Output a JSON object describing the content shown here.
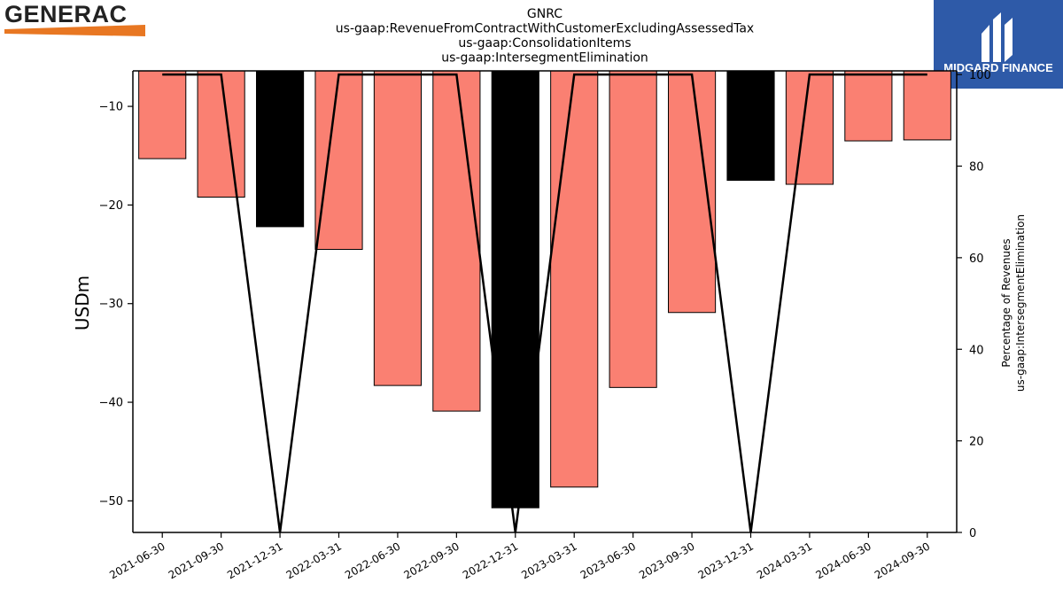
{
  "logos": {
    "left": {
      "text": "GENERAC",
      "accent": "#e87722"
    },
    "right": {
      "text": "MIDGARD FINANCE",
      "background": "#2e5aa8"
    }
  },
  "chart_data": {
    "type": "bar",
    "title_lines": [
      "GNRC",
      "us-gaap:RevenueFromContractWithCustomerExcludingAssessedTax",
      "us-gaap:ConsolidationItems",
      "us-gaap:IntersegmentElimination"
    ],
    "categories": [
      "2021-06-30",
      "2021-09-30",
      "2021-12-31",
      "2022-03-31",
      "2022-06-30",
      "2022-09-30",
      "2022-12-31",
      "2023-03-31",
      "2023-06-30",
      "2023-09-30",
      "2023-12-31",
      "2024-03-31",
      "2024-06-30",
      "2024-09-30"
    ],
    "series": [
      {
        "kind": "bar",
        "axis": "left",
        "values": [
          -15.3,
          -19.2,
          -22.2,
          -24.5,
          -38.3,
          -40.9,
          -50.7,
          -48.6,
          -38.5,
          -30.9,
          -17.5,
          -17.9,
          -13.5,
          -13.4
        ],
        "colors": [
          "#fa8072",
          "#fa8072",
          "#000000",
          "#fa8072",
          "#fa8072",
          "#fa8072",
          "#000000",
          "#fa8072",
          "#fa8072",
          "#fa8072",
          "#000000",
          "#fa8072",
          "#fa8072",
          "#fa8072"
        ]
      },
      {
        "kind": "line",
        "axis": "right",
        "color": "#000000",
        "values": [
          100,
          100,
          0,
          100,
          100,
          100,
          0,
          100,
          100,
          100,
          0,
          100,
          100,
          100
        ]
      }
    ],
    "ylabel": "USDm",
    "ylim": [
      -53.2,
      -6.4
    ],
    "yticks": [
      -10,
      -20,
      -30,
      -40,
      -50
    ],
    "y2label_lines": [
      "Percentage of Revenues",
      "us-gaap:IntersegmentElimination"
    ],
    "y2lim": [
      0,
      100.8
    ],
    "y2ticks": [
      0,
      20,
      40,
      60,
      80,
      100
    ],
    "grid": false
  }
}
